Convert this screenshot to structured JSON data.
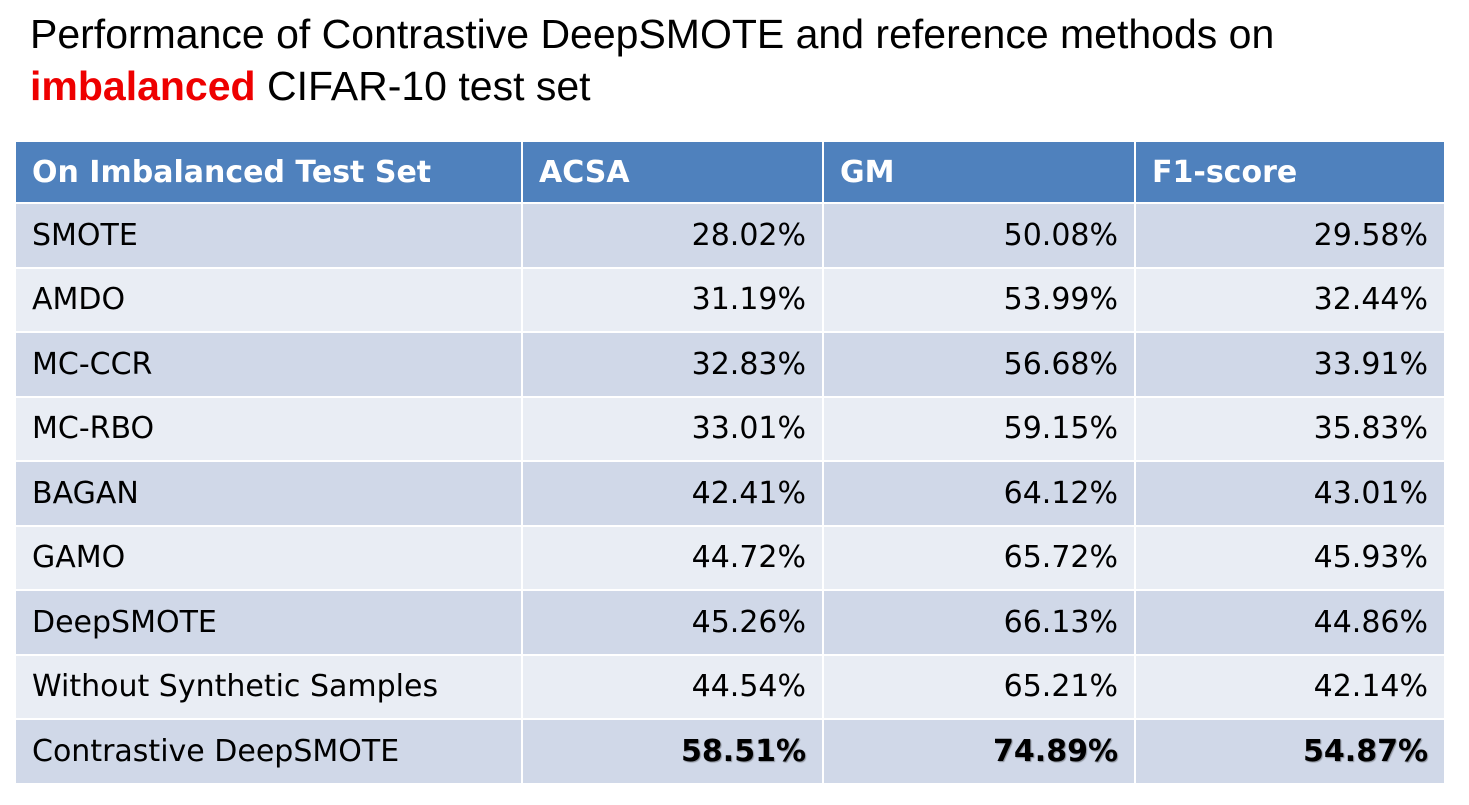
{
  "title": {
    "line1": "Performance of Contrastive DeepSMOTE and reference methods on",
    "emphasis": "imbalanced",
    "rest": " CIFAR-10 test set"
  },
  "table": {
    "headers": [
      "On Imbalanced Test Set",
      "ACSA",
      "GM",
      "F1-score"
    ],
    "rows": [
      {
        "method": "SMOTE",
        "acsa": "28.02%",
        "gm": "50.08%",
        "f1": "29.58%"
      },
      {
        "method": "AMDO",
        "acsa": "31.19%",
        "gm": "53.99%",
        "f1": "32.44%"
      },
      {
        "method": "MC-CCR",
        "acsa": "32.83%",
        "gm": "56.68%",
        "f1": "33.91%"
      },
      {
        "method": "MC-RBO",
        "acsa": "33.01%",
        "gm": "59.15%",
        "f1": "35.83%"
      },
      {
        "method": "BAGAN",
        "acsa": "42.41%",
        "gm": "64.12%",
        "f1": "43.01%"
      },
      {
        "method": "GAMO",
        "acsa": "44.72%",
        "gm": "65.72%",
        "f1": "45.93%"
      },
      {
        "method": "DeepSMOTE",
        "acsa": "45.26%",
        "gm": "66.13%",
        "f1": "44.86%"
      },
      {
        "method": "Without Synthetic Samples",
        "acsa": "44.54%",
        "gm": "65.21%",
        "f1": "42.14%"
      },
      {
        "method": "Contrastive DeepSMOTE",
        "acsa": "58.51%",
        "gm": "74.89%",
        "f1": "54.87%",
        "best": true
      }
    ]
  },
  "colors": {
    "header_bg": "#4f81bd",
    "row_odd": "#d0d8e8",
    "row_even": "#e9edf4",
    "emphasis": "#ee0000"
  }
}
